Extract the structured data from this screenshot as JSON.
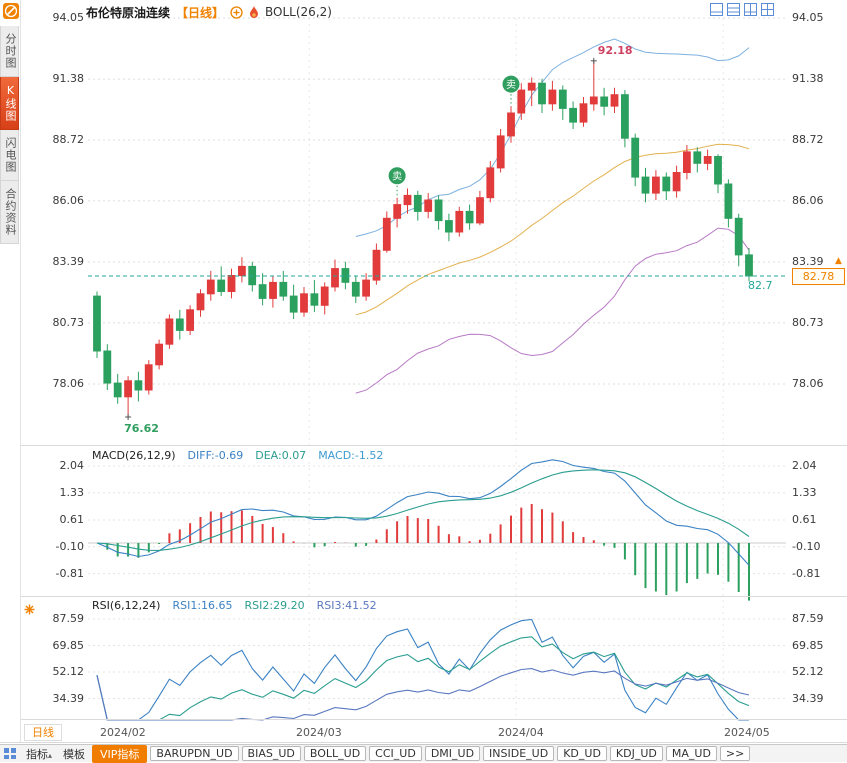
{
  "header": {
    "symbol": "布伦特原油连续",
    "period_tag": "【日线】",
    "indicator": "BOLL(26,2)"
  },
  "sidebar": {
    "items": [
      {
        "label": "分时图",
        "active": false
      },
      {
        "label": "K线图",
        "active": true
      },
      {
        "label": "闪电图",
        "active": false
      },
      {
        "label": "合约资料",
        "active": false
      }
    ]
  },
  "macd": {
    "title": "MACD(26,12,9)",
    "diff": "DIFF:-0.69",
    "dea": "DEA:0.07",
    "macd": "MACD:-1.52"
  },
  "rsi": {
    "title": "RSI(6,12,24)",
    "rsi1": "RSI1:16.65",
    "rsi2": "RSI2:29.20",
    "rsi3": "RSI3:41.52"
  },
  "price_marker": {
    "box_value": "82.78",
    "axis_value": "82.7",
    "arrow_symbol": "▲"
  },
  "annotations": {
    "sell_label": "卖",
    "high_text": "92.18",
    "low_text": "76.62"
  },
  "x_axis": {
    "months": [
      {
        "label": "2024/02"
      },
      {
        "label": "2024/03"
      },
      {
        "label": "2024/04"
      },
      {
        "label": "2024/05"
      }
    ],
    "period_label": "日线"
  },
  "toolbar": {
    "items": [
      {
        "label": "指标",
        "type": "tab",
        "arrow": true
      },
      {
        "label": "模板",
        "type": "tab",
        "arrow": false
      },
      {
        "label": "VIP指标",
        "type": "vip",
        "arrow": false
      },
      {
        "label": "BARUPDN_UD",
        "type": "btn",
        "arrow": false
      },
      {
        "label": "BIAS_UD",
        "type": "btn",
        "arrow": false
      },
      {
        "label": "BOLL_UD",
        "type": "btn",
        "arrow": false
      },
      {
        "label": "CCI_UD",
        "type": "btn",
        "arrow": false
      },
      {
        "label": "DMI_UD",
        "type": "btn",
        "arrow": false
      },
      {
        "label": "INSIDE_UD",
        "type": "btn",
        "arrow": false
      },
      {
        "label": "KD_UD",
        "type": "btn",
        "arrow": false
      },
      {
        "label": "KDJ_UD",
        "type": "btn",
        "arrow": false
      },
      {
        "label": "MA_UD",
        "type": "btn",
        "arrow": false
      },
      {
        "label": ">>",
        "type": "btn",
        "arrow": false
      }
    ]
  },
  "colors": {
    "up": "#e13b3b",
    "down": "#2ba05f",
    "accent_orange": "#f08200",
    "teal_line": "#26a69a",
    "diff_line": "#3b82c4",
    "dea_line": "#2a9d8f",
    "high_label": "#d04060",
    "low_label": "#2f9e5e",
    "sell_badge": "#2f9e5e"
  },
  "chart_data": {
    "type": "candlestick",
    "title": "布伦特原油连续 日线",
    "overlay_indicator": "BOLL(26,2)",
    "y_axis_labels": [
      94.05,
      91.38,
      88.72,
      86.06,
      83.39,
      80.73,
      78.06
    ],
    "macd_axis_labels": [
      2.04,
      1.33,
      0.61,
      -0.1,
      -0.81
    ],
    "rsi_axis_labels": [
      87.59,
      69.85,
      52.12,
      34.39
    ],
    "x_tick_labels": [
      "2024/02",
      "2024/03",
      "2024/04",
      "2024/05"
    ],
    "current_price": 82.78,
    "high_label": {
      "index": 48,
      "value": 92.18
    },
    "low_label": {
      "index": 3,
      "value": 76.62
    },
    "sell_marker_indices": [
      29,
      40
    ],
    "macd_values": {
      "diff": -0.69,
      "dea": 0.07,
      "macd": -1.52
    },
    "rsi_values": {
      "rsi1": 16.65,
      "rsi2": 29.2,
      "rsi3": 41.52
    },
    "candles": [
      [
        81.9,
        82.1,
        79.2,
        79.5
      ],
      [
        79.5,
        79.8,
        77.8,
        78.1
      ],
      [
        78.1,
        78.5,
        77.2,
        77.5
      ],
      [
        77.5,
        78.4,
        76.62,
        78.2
      ],
      [
        78.2,
        78.6,
        77.3,
        77.8
      ],
      [
        77.8,
        79.1,
        77.6,
        78.9
      ],
      [
        78.9,
        80.0,
        78.7,
        79.8
      ],
      [
        79.8,
        81.1,
        79.6,
        80.9
      ],
      [
        80.9,
        81.3,
        80.0,
        80.4
      ],
      [
        80.4,
        81.5,
        80.2,
        81.3
      ],
      [
        81.3,
        82.2,
        81.0,
        82.0
      ],
      [
        82.0,
        83.0,
        81.7,
        82.6
      ],
      [
        82.6,
        83.2,
        81.9,
        82.1
      ],
      [
        82.1,
        83.1,
        81.8,
        82.8
      ],
      [
        82.8,
        83.6,
        82.5,
        83.2
      ],
      [
        83.2,
        83.4,
        82.1,
        82.4
      ],
      [
        82.4,
        82.9,
        81.5,
        81.8
      ],
      [
        81.8,
        82.8,
        81.4,
        82.5
      ],
      [
        82.5,
        83.0,
        81.7,
        81.9
      ],
      [
        81.9,
        82.4,
        80.9,
        81.2
      ],
      [
        81.2,
        82.3,
        81.0,
        82.0
      ],
      [
        82.0,
        82.6,
        81.2,
        81.5
      ],
      [
        81.5,
        82.5,
        81.1,
        82.3
      ],
      [
        82.3,
        83.5,
        82.1,
        83.1
      ],
      [
        83.1,
        83.4,
        82.2,
        82.5
      ],
      [
        82.5,
        82.8,
        81.6,
        81.9
      ],
      [
        81.9,
        82.9,
        81.7,
        82.6
      ],
      [
        82.6,
        84.2,
        82.4,
        83.9
      ],
      [
        83.9,
        85.6,
        83.8,
        85.3
      ],
      [
        85.3,
        86.2,
        84.9,
        85.9
      ],
      [
        85.9,
        86.6,
        85.5,
        86.3
      ],
      [
        86.3,
        86.5,
        85.2,
        85.6
      ],
      [
        85.6,
        86.4,
        85.3,
        86.1
      ],
      [
        86.1,
        86.3,
        84.8,
        85.2
      ],
      [
        85.2,
        85.5,
        84.3,
        84.7
      ],
      [
        84.7,
        85.8,
        84.5,
        85.6
      ],
      [
        85.6,
        85.9,
        84.8,
        85.1
      ],
      [
        85.1,
        86.5,
        85.0,
        86.2
      ],
      [
        86.2,
        87.8,
        86.0,
        87.5
      ],
      [
        87.5,
        89.2,
        87.3,
        88.9
      ],
      [
        88.9,
        90.2,
        88.6,
        89.9
      ],
      [
        89.9,
        91.2,
        89.6,
        90.9
      ],
      [
        90.9,
        91.45,
        90.2,
        91.2
      ],
      [
        91.2,
        91.4,
        89.9,
        90.3
      ],
      [
        90.3,
        91.3,
        90.0,
        90.9
      ],
      [
        90.9,
        91.1,
        89.6,
        90.1
      ],
      [
        90.1,
        90.4,
        89.2,
        89.5
      ],
      [
        89.5,
        90.6,
        89.3,
        90.3
      ],
      [
        90.3,
        92.18,
        90.0,
        90.6
      ],
      [
        90.6,
        91.0,
        89.8,
        90.2
      ],
      [
        90.2,
        91.0,
        89.9,
        90.7
      ],
      [
        90.7,
        90.9,
        88.4,
        88.8
      ],
      [
        88.8,
        89.0,
        86.7,
        87.1
      ],
      [
        87.1,
        87.5,
        86.0,
        86.4
      ],
      [
        86.4,
        87.4,
        86.1,
        87.1
      ],
      [
        87.1,
        87.3,
        86.1,
        86.5
      ],
      [
        86.5,
        87.6,
        86.2,
        87.3
      ],
      [
        87.3,
        88.5,
        87.0,
        88.2
      ],
      [
        88.2,
        88.4,
        87.3,
        87.7
      ],
      [
        87.7,
        88.3,
        87.4,
        88.0
      ],
      [
        88.0,
        88.1,
        86.4,
        86.8
      ],
      [
        86.8,
        87.0,
        84.9,
        85.3
      ],
      [
        85.3,
        85.5,
        83.2,
        83.7
      ],
      [
        83.7,
        84.0,
        82.55,
        82.78
      ]
    ]
  }
}
